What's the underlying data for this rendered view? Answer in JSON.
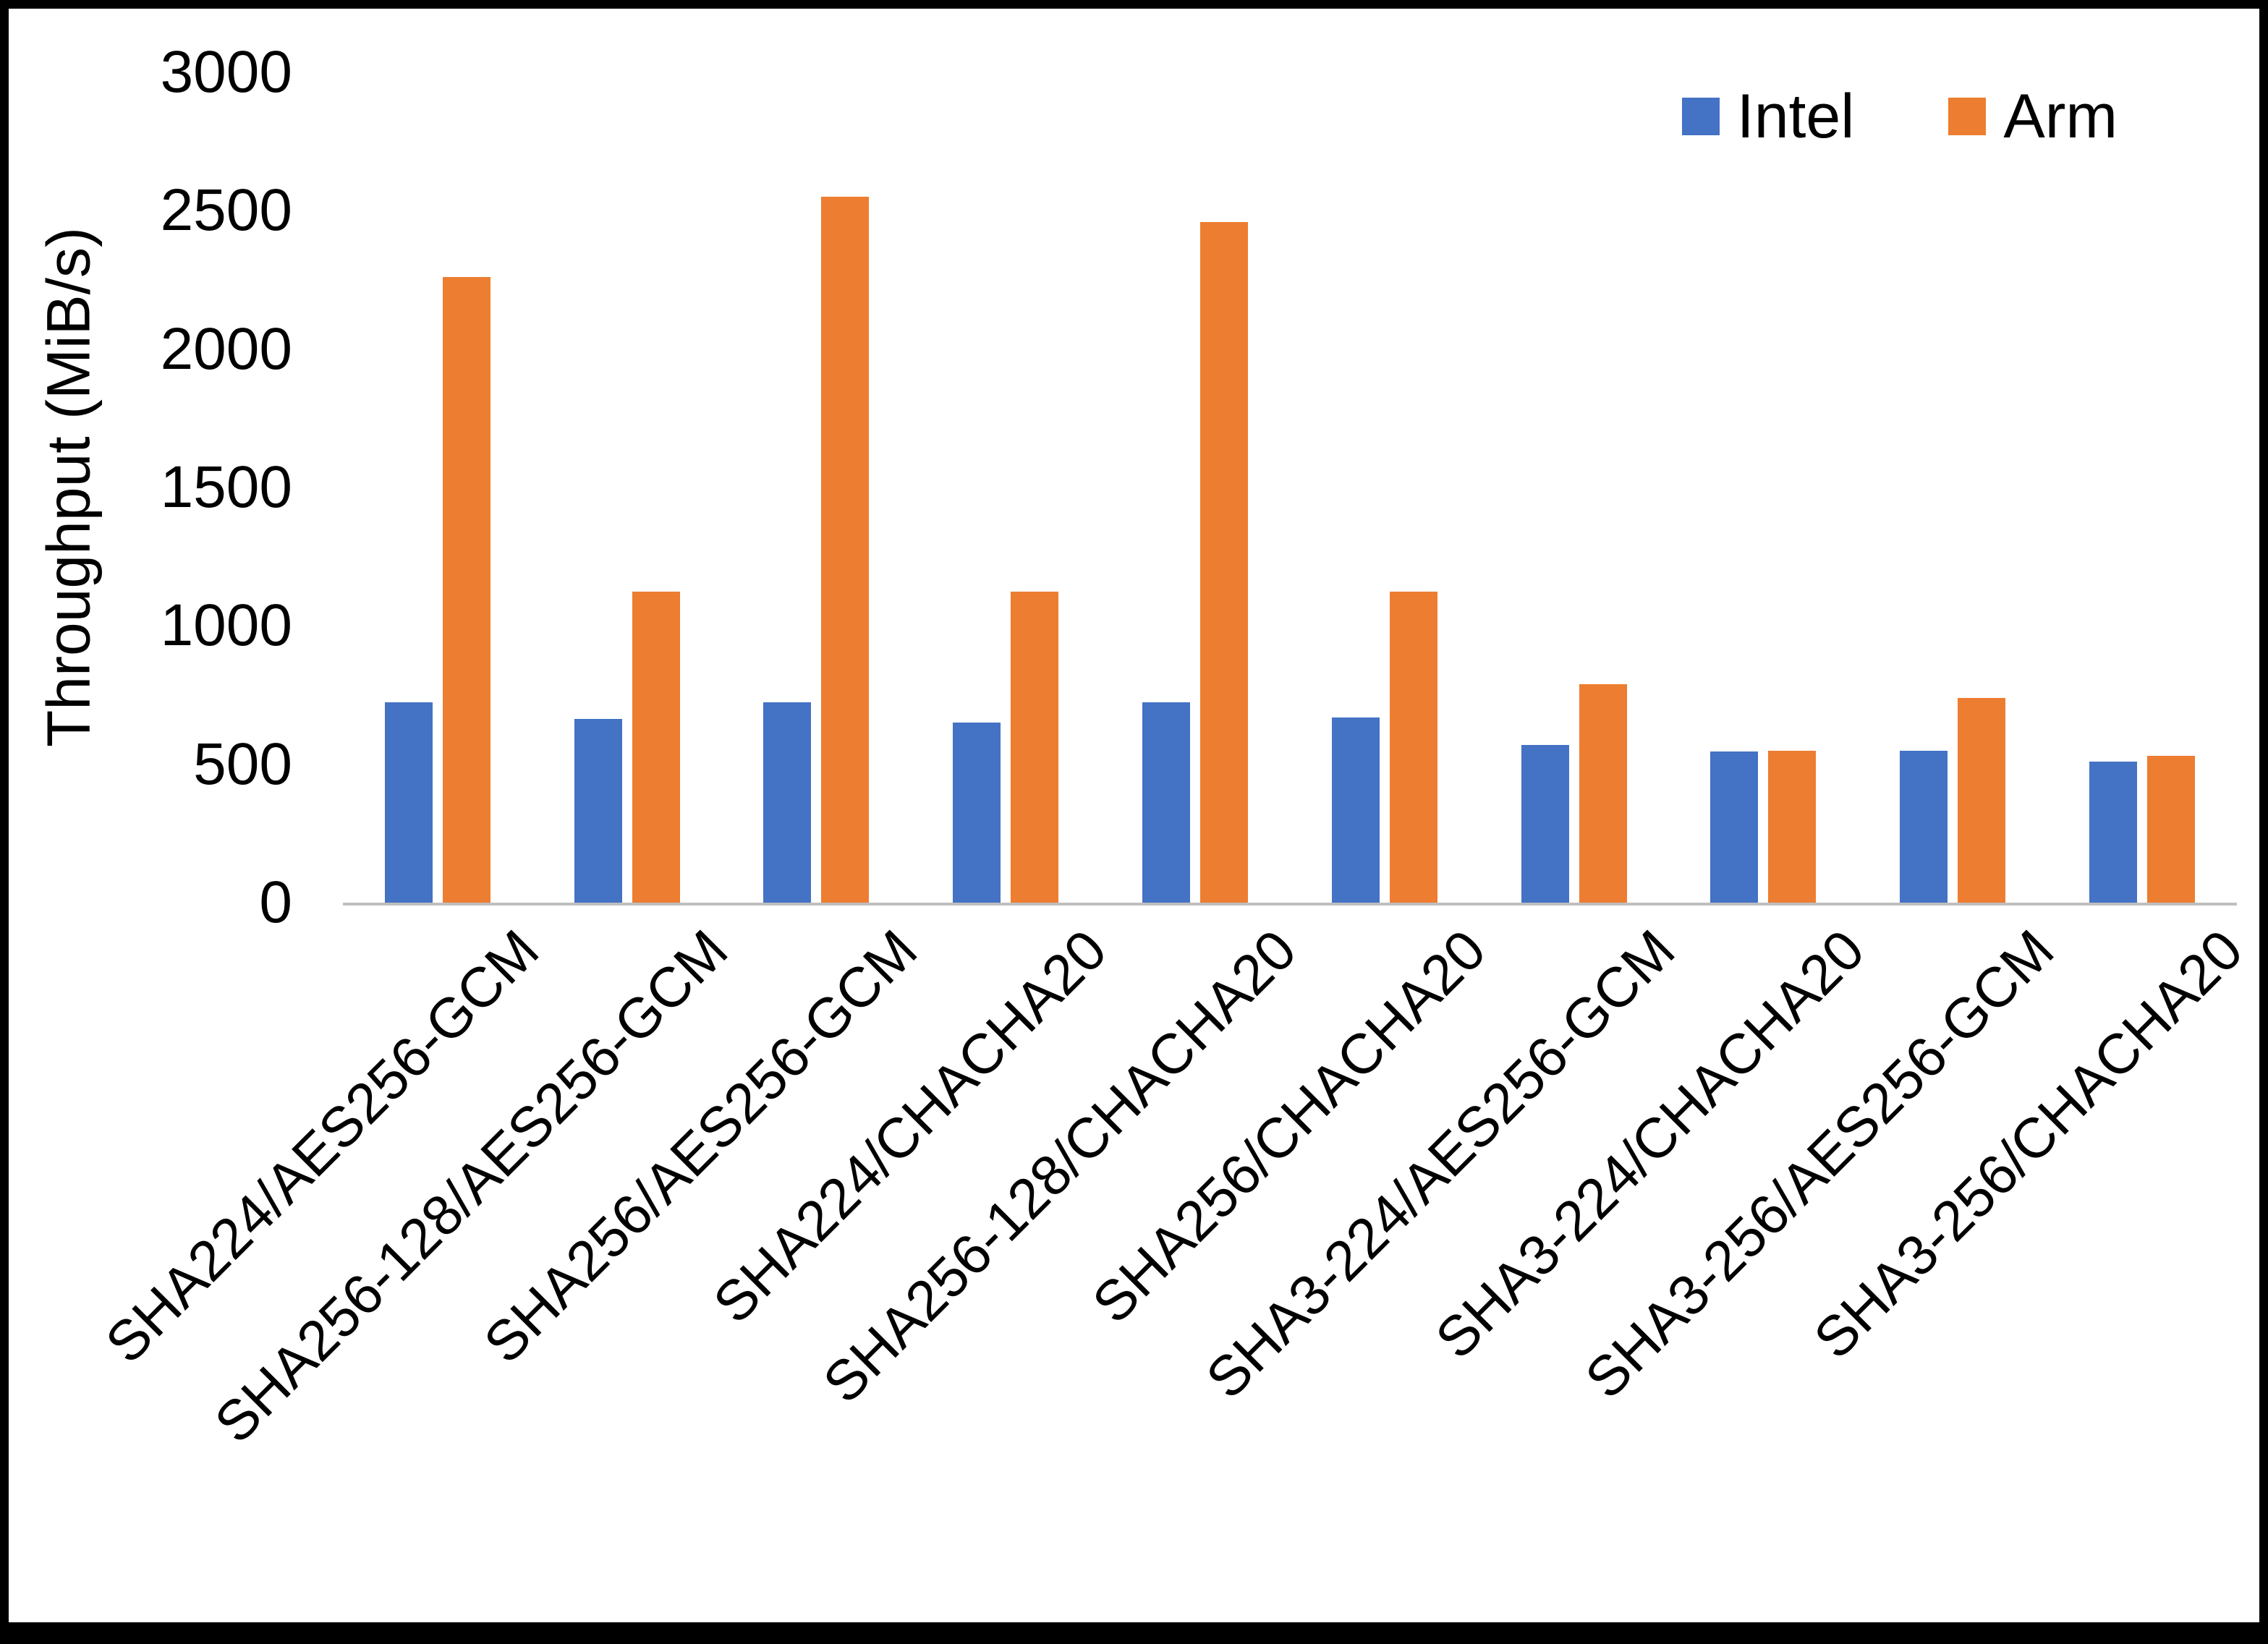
{
  "chart_data": {
    "type": "bar",
    "title": "",
    "xlabel": "",
    "ylabel": "Throughput (MiB/s)",
    "ylim": [
      0,
      3000
    ],
    "yticks": [
      0,
      500,
      1000,
      1500,
      2000,
      2500,
      3000
    ],
    "grid": false,
    "legend_position": "top-right",
    "categories": [
      "SHA224/AES256-GCM",
      "SHA256-128/AES256-GCM",
      "SHA256/AES256-GCM",
      "SHA224/CHACHA20",
      "SHA256-128/CHACHA20",
      "SHA256/CHACHA20",
      "SHA3-224/AES256-GCM",
      "SHA3-224/CHACHA20",
      "SHA3-256/AES256-GCM",
      "SHA3-256/CHACHA20"
    ],
    "series": [
      {
        "name": "Intel",
        "color": "#4472C4",
        "values": [
          725,
          665,
          725,
          650,
          725,
          670,
          570,
          545,
          550,
          510
        ]
      },
      {
        "name": "Arm",
        "color": "#ED7D31",
        "values": [
          2260,
          1125,
          2550,
          1125,
          2460,
          1125,
          790,
          550,
          740,
          530
        ]
      }
    ]
  }
}
